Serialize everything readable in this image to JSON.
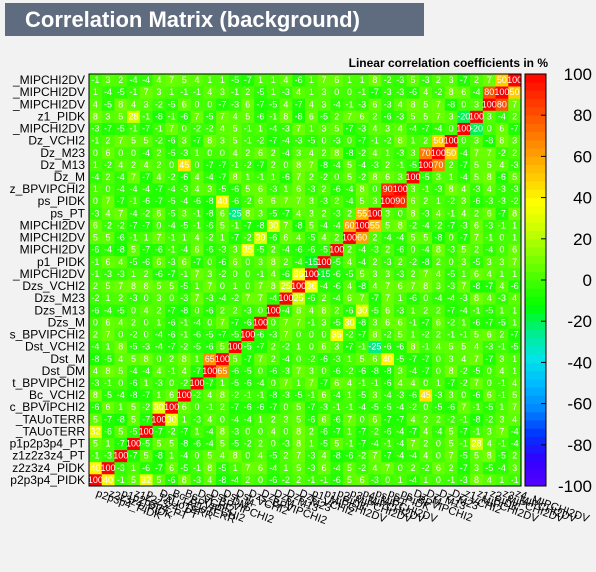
{
  "window": {
    "title": "Correlation Matrix (background)",
    "subtitle": "Linear correlation coefficients in %"
  },
  "colors": {
    "background": "#f2f2f2",
    "title_box": "#5f6c80",
    "title_text": "#ffffff",
    "cell_text": "#ffffff"
  },
  "chart_data": {
    "type": "heatmap",
    "title": "Linear correlation coefficients in %",
    "zlim": [
      -100,
      100
    ],
    "z_ticks": [
      -100,
      -80,
      -60,
      -40,
      -20,
      0,
      20,
      40,
      60,
      80,
      100
    ],
    "color_stops": [
      "#5500ff",
      "#3300ff",
      "#0033ff",
      "#0088ff",
      "#00bbff",
      "#00e6e6",
      "#00ee88",
      "#00ff00",
      "#44ff00",
      "#88ff00",
      "#ccff00",
      "#ffff00",
      "#ffcc00",
      "#ff9900",
      "#ff6600",
      "#ff3300",
      "#ff0000"
    ],
    "variables_bottom_to_top": [
      "p2p3p4_PIDK",
      "z2z3z4_PIDK",
      "p1p2p3p4_PT",
      "z1z2z3z4_PT",
      "p_TAUoTERR",
      "Dst_TAUoTERR",
      "Bc_BPVIPCHI2",
      "Bc_VCHI2",
      "Dst_BPVIPCHI2",
      "Dst_DM",
      "Dst_M",
      "Dst_VCHI2",
      "Dzs_BPVIPCHI2",
      "Dzs_M",
      "Dzs_M13",
      "Dzs_M23",
      "Dzs_VCHI2",
      "p1_MIPCHI2DV",
      "p1_PIDK",
      "p2_MIPCHI2DV",
      "p3_MIPCHI2DV",
      "p4_MIPCHI2DV",
      "ps_PT",
      "ps_PIDK",
      "ps_BPVIPCHI2",
      "Dz_M",
      "Dz_M13",
      "Dz_M23",
      "Dz_VCHI2",
      "z1_MIPCHI2DV",
      "z1_PIDK",
      "z2_MIPCHI2DV",
      "z3_MIPCHI2DV",
      "z4_MIPCHI2DV"
    ],
    "left_labels_top_to_bottom": [
      "_MIPCHI2DV",
      "_MIPCHI2DV",
      "_MIPCHI2DV",
      "z1_PIDK",
      "_MIPCHI2DV",
      "Dz_VCHI2",
      "Dz_M23",
      "Dz_M13",
      "Dz_M",
      "z_BPVIPCHI2",
      "ps_PIDK",
      "ps_PT",
      "MIPCHI2DV",
      "MIPCHI2DV",
      "MIPCHI2DV",
      "p1_PIDK",
      "_MIPCHI2DV",
      "Dzs_VCHI2",
      "Dzs_M23",
      "Dzs_M13",
      "Dzs_M",
      "s_BPVIPCHI2",
      "Dst_VCHI2",
      "Dst_M",
      "Dst_DM",
      "t_BPVIPCHI2",
      "Bc_VCHI2",
      "c_BPVIPCHI2",
      "_TAUoTERR",
      "_TAUoTERR",
      "p1p2p3p4_PT",
      "z1z2z3z4_PT",
      "z2z3z4_PIDK",
      "p2p3p4_PIDK"
    ],
    "special_cells": [
      {
        "row": 11,
        "col": 11,
        "value": 100
      },
      {
        "row": 24,
        "col": 23,
        "value": 90
      },
      {
        "row": 23,
        "col": 24,
        "value": 90
      },
      {
        "row": 23,
        "col": 10,
        "value": 40
      },
      {
        "row": 10,
        "col": 23,
        "value": 40
      },
      {
        "row": 17,
        "col": 16,
        "value": 36
      },
      {
        "row": 16,
        "col": 17,
        "value": 36
      },
      {
        "row": 32,
        "col": 31,
        "value": 80
      },
      {
        "row": 31,
        "col": 32,
        "value": 80
      },
      {
        "row": 27,
        "col": 26,
        "value": 70
      },
      {
        "row": 26,
        "col": 27,
        "value": 70
      },
      {
        "row": 7,
        "col": 26,
        "value": 45
      },
      {
        "row": 26,
        "col": 7,
        "value": 45
      },
      {
        "row": 21,
        "col": 20,
        "value": 60
      },
      {
        "row": 20,
        "col": 21,
        "value": 60
      },
      {
        "row": 22,
        "col": 21,
        "value": 55
      },
      {
        "row": 21,
        "col": 22,
        "value": 55
      },
      {
        "row": 12,
        "col": 19,
        "value": 35
      },
      {
        "row": 19,
        "col": 12,
        "value": 35
      },
      {
        "row": 13,
        "col": 20,
        "value": 30
      },
      {
        "row": 20,
        "col": 13,
        "value": 30
      },
      {
        "row": 14,
        "col": 21,
        "value": 30
      },
      {
        "row": 21,
        "col": 14,
        "value": 30
      },
      {
        "row": 6,
        "col": 5,
        "value": 30
      },
      {
        "row": 5,
        "col": 6,
        "value": 30
      },
      {
        "row": 10,
        "col": 9,
        "value": 65
      },
      {
        "row": 9,
        "col": 10,
        "value": 65
      },
      {
        "row": 28,
        "col": 27,
        "value": 50
      },
      {
        "row": 27,
        "col": 28,
        "value": 50
      },
      {
        "row": 33,
        "col": 32,
        "value": 50
      },
      {
        "row": 32,
        "col": 33,
        "value": 50
      },
      {
        "row": 1,
        "col": 0,
        "value": 40
      },
      {
        "row": 0,
        "col": 1,
        "value": 40
      },
      {
        "row": 4,
        "col": 0,
        "value": 32
      },
      {
        "row": 0,
        "col": 4,
        "value": 32
      },
      {
        "row": 30,
        "col": 3,
        "value": 28
      },
      {
        "row": 3,
        "col": 30,
        "value": 28
      },
      {
        "row": 15,
        "col": 16,
        "value": 25
      },
      {
        "row": 16,
        "col": 15,
        "value": 25
      },
      {
        "row": 18,
        "col": 17,
        "value": -15
      },
      {
        "row": 17,
        "col": 18,
        "value": -15
      },
      {
        "row": 30,
        "col": 29,
        "value": -20
      },
      {
        "row": 29,
        "col": 30,
        "value": -20
      },
      {
        "row": 22,
        "col": 11,
        "value": -25
      },
      {
        "row": 11,
        "col": 22,
        "value": -25
      }
    ]
  }
}
